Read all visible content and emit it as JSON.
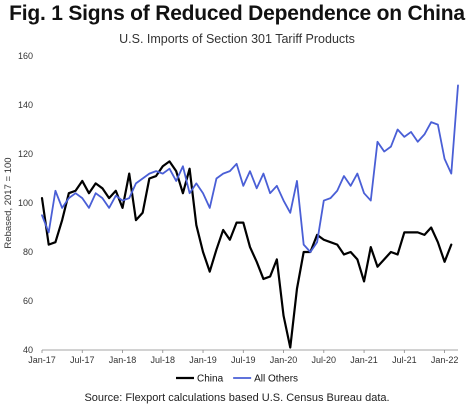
{
  "chart_data": {
    "type": "line",
    "title": "Fig. 1 Signs of Reduced Dependence on China",
    "subtitle": "U.S. Imports of Section 301 Tariff Products",
    "ylabel": "Rebased, 2017 = 100",
    "xlabel": "",
    "source": "Source: Flexport calculations based U.S. Census Bureau data.",
    "ylim": [
      40,
      160
    ],
    "yticks": [
      40,
      60,
      80,
      100,
      120,
      140,
      160
    ],
    "xticks": [
      "Jan-17",
      "Jul-17",
      "Jan-18",
      "Jul-18",
      "Jan-19",
      "Jul-19",
      "Jan-20",
      "Jul-20",
      "Jan-21",
      "Jul-21",
      "Jan-22"
    ],
    "x": [
      "Jan-17",
      "Feb-17",
      "Mar-17",
      "Apr-17",
      "May-17",
      "Jun-17",
      "Jul-17",
      "Aug-17",
      "Sep-17",
      "Oct-17",
      "Nov-17",
      "Dec-17",
      "Jan-18",
      "Feb-18",
      "Mar-18",
      "Apr-18",
      "May-18",
      "Jun-18",
      "Jul-18",
      "Aug-18",
      "Sep-18",
      "Oct-18",
      "Nov-18",
      "Dec-18",
      "Jan-19",
      "Feb-19",
      "Mar-19",
      "Apr-19",
      "May-19",
      "Jun-19",
      "Jul-19",
      "Aug-19",
      "Sep-19",
      "Oct-19",
      "Nov-19",
      "Dec-19",
      "Jan-20",
      "Feb-20",
      "Mar-20",
      "Apr-20",
      "May-20",
      "Jun-20",
      "Jul-20",
      "Aug-20",
      "Sep-20",
      "Oct-20",
      "Nov-20",
      "Dec-20",
      "Jan-21",
      "Feb-21",
      "Mar-21",
      "Apr-21",
      "May-21",
      "Jun-21",
      "Jul-21",
      "Aug-21",
      "Sep-21",
      "Oct-21",
      "Nov-21",
      "Dec-21",
      "Jan-22",
      "Feb-22",
      "Mar-22"
    ],
    "series": [
      {
        "name": "China",
        "color": "#000000",
        "values": [
          102,
          83,
          84,
          93,
          104,
          105,
          109,
          104,
          108,
          106,
          102,
          105,
          98,
          112,
          93,
          96,
          110,
          111,
          115,
          117,
          113,
          104,
          114,
          91,
          80,
          72,
          81,
          89,
          85,
          92,
          92,
          82,
          76,
          69,
          70,
          77,
          54,
          41,
          65,
          80,
          80,
          87,
          85,
          84,
          83,
          79,
          80,
          77,
          68,
          82,
          74,
          77,
          80,
          79,
          88,
          88,
          88,
          87,
          90,
          84,
          76,
          83,
          null
        ]
      },
      {
        "name": "All Others",
        "color": "#4a5fd6",
        "values": [
          95,
          88,
          105,
          98,
          102,
          104,
          102,
          98,
          104,
          102,
          98,
          103,
          101,
          102,
          108,
          110,
          112,
          113,
          112,
          114,
          109,
          115,
          104,
          108,
          104,
          98,
          110,
          112,
          113,
          116,
          107,
          113,
          106,
          112,
          104,
          107,
          101,
          96,
          109,
          83,
          80,
          84,
          101,
          102,
          105,
          111,
          107,
          112,
          104,
          101,
          125,
          121,
          123,
          130,
          127,
          129,
          125,
          128,
          133,
          132,
          118,
          112,
          148
        ]
      }
    ],
    "legend": {
      "position": "bottom-center",
      "entries": [
        "China",
        "All Others"
      ]
    },
    "grid": false
  }
}
